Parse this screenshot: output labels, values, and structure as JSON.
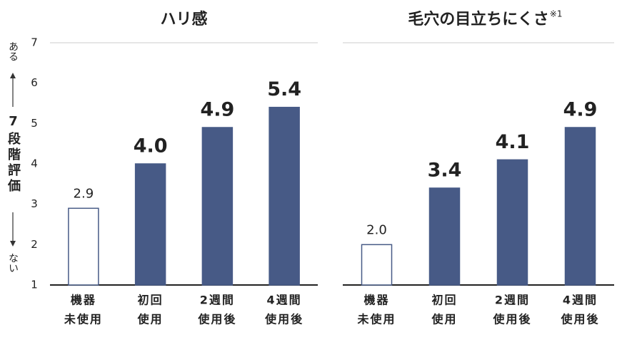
{
  "chart_data": [
    {
      "type": "bar",
      "title": "ハリ感",
      "ylabel_top": "ある",
      "ylabel": "7段階評価",
      "ylabel_bottom": "ない",
      "categories": [
        [
          "機器",
          "未使用"
        ],
        [
          "初回",
          "使用"
        ],
        [
          "2週間",
          "使用後"
        ],
        [
          "4週間",
          "使用後"
        ]
      ],
      "values": [
        2.9,
        4.0,
        4.9,
        5.4
      ],
      "value_labels": [
        "2.9",
        "4.0",
        "4.9",
        "5.4"
      ],
      "colors": [
        "#ffffff",
        "#475a86",
        "#475a86",
        "#475a86"
      ],
      "edge_color": "#475a86",
      "ylim": [
        1,
        7
      ],
      "yticks": [
        1,
        2,
        3,
        4,
        5,
        6,
        7
      ]
    },
    {
      "type": "bar",
      "title": "毛穴の目立ちにくさ",
      "title_note": "※1",
      "categories": [
        [
          "機器",
          "未使用"
        ],
        [
          "初回",
          "使用"
        ],
        [
          "2週間",
          "使用後"
        ],
        [
          "4週間",
          "使用後"
        ]
      ],
      "values": [
        2.0,
        3.4,
        4.1,
        4.9
      ],
      "value_labels": [
        "2.0",
        "3.4",
        "4.1",
        "4.9"
      ],
      "colors": [
        "#ffffff",
        "#475a86",
        "#475a86",
        "#475a86"
      ],
      "edge_color": "#475a86",
      "ylim": [
        1,
        7
      ]
    }
  ]
}
